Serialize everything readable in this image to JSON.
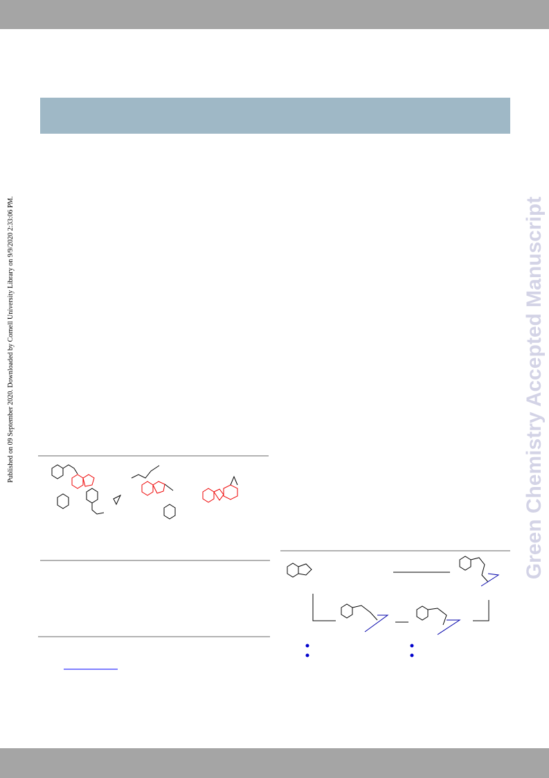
{
  "sidebar": {
    "publication_note": "Published on 09 September 2020. Downloaded by Cornell University Library on 9/9/2020 2:33:06 PM.",
    "watermark": "Green Chemistry Accepted Manuscript"
  }
}
